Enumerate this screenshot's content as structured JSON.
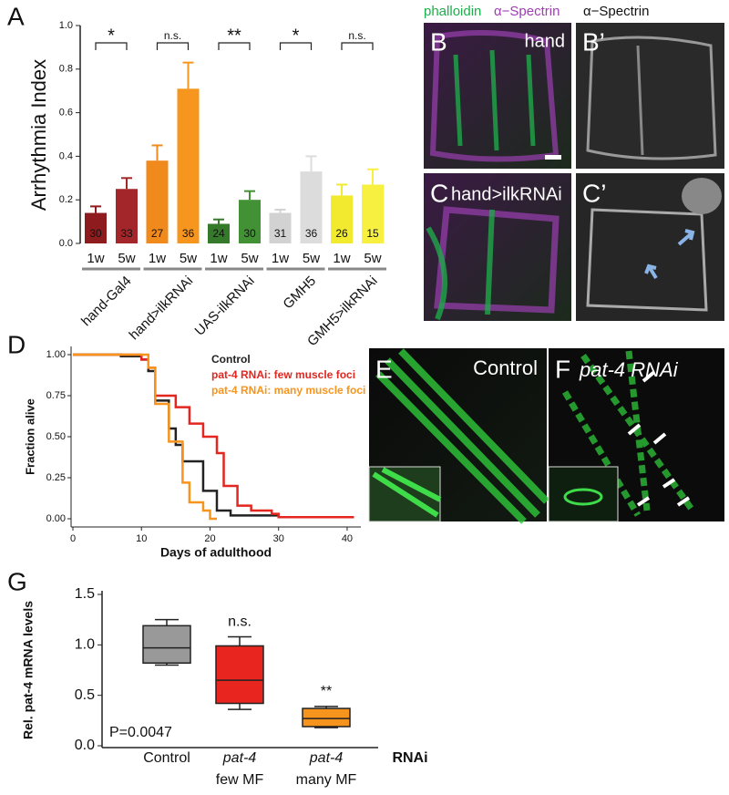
{
  "chart_data": [
    {
      "type": "bar",
      "panel": "A",
      "ylabel": "Arrhythmia Index",
      "ylim": [
        0,
        1
      ],
      "yticks": [
        {
          "value": 0,
          "label": "0.0"
        },
        0.2,
        0.4,
        0.6,
        0.8,
        {
          "value": 1,
          "label": "1.0"
        }
      ],
      "categories": [
        "1w",
        "5w",
        "1w",
        "5w",
        "1w",
        "5w",
        "1w",
        "5w",
        "1w",
        "5w"
      ],
      "groups": [
        "hand-Gal4",
        "hand>ilkRNAi",
        "UAS-ilkRNAi",
        "GMH5",
        "GMH5>ilkRNAi"
      ],
      "significance": [
        "*",
        "n.s.",
        "**",
        "*",
        "n.s."
      ],
      "values": [
        0.14,
        0.25,
        0.38,
        0.71,
        0.09,
        0.2,
        0.14,
        0.33,
        0.22,
        0.27
      ],
      "errors": [
        0.03,
        0.05,
        0.07,
        0.12,
        0.02,
        0.04,
        0.015,
        0.07,
        0.05,
        0.07
      ],
      "counts": [
        30,
        33,
        27,
        36,
        24,
        30,
        31,
        36,
        26,
        15
      ],
      "colors": [
        "#8e1b1e",
        "#a3262a",
        "#f08a1c",
        "#f7961f",
        "#357a2a",
        "#429135",
        "#d2d2d2",
        "#dcdcdc",
        "#f2ea2e",
        "#f7f041"
      ]
    },
    {
      "type": "line",
      "panel": "D",
      "step": true,
      "xlabel": "Days of adulthood",
      "ylabel": "Fraction alive",
      "xlim": [
        0,
        42
      ],
      "xticks": [
        0,
        10,
        20,
        30,
        40
      ],
      "ylim": [
        -0.05,
        1.05
      ],
      "yticks": [
        {
          "value": 0,
          "label": "0.00"
        },
        0.25,
        {
          "value": 0.5,
          "label": "0.50"
        },
        0.75,
        {
          "value": 1,
          "label": "1.00"
        }
      ],
      "series": [
        {
          "name": "Control",
          "color": "#222222",
          "x": [
            0,
            5,
            7,
            10,
            11,
            12,
            14,
            15,
            16,
            18,
            19,
            21,
            23,
            30
          ],
          "values": [
            1,
            1,
            0.99,
            0.97,
            0.9,
            0.72,
            0.55,
            0.45,
            0.35,
            0.35,
            0.17,
            0.05,
            0.02,
            0.02
          ]
        },
        {
          "name": "pat-4 RNAi: few muscle foci",
          "color": "#e3261f",
          "x": [
            0,
            10,
            11,
            12,
            14,
            15,
            17,
            19,
            21,
            22,
            24,
            26,
            29,
            30,
            41
          ],
          "values": [
            1,
            0.97,
            0.92,
            0.75,
            0.75,
            0.68,
            0.58,
            0.5,
            0.4,
            0.2,
            0.08,
            0.05,
            0.03,
            0.01,
            0.01
          ]
        },
        {
          "name": "pat-4 RNAi: many muscle foci",
          "color": "#f7941d",
          "x": [
            0,
            10,
            11,
            12,
            14,
            16,
            17,
            19,
            20,
            21
          ],
          "values": [
            1,
            1,
            0.92,
            0.7,
            0.47,
            0.22,
            0.1,
            0.05,
            0,
            0
          ]
        }
      ]
    },
    {
      "type": "box",
      "panel": "G",
      "ylabel": "Rel. pat-4 mRNA levels",
      "xlabel": "RNAi",
      "ylim": [
        0,
        1.5
      ],
      "yticks": [
        {
          "value": 0,
          "label": "0.0"
        },
        0.5,
        {
          "value": 1,
          "label": "1.0"
        },
        1.5
      ],
      "categories": [
        [
          "Control"
        ],
        [
          "pat-4",
          "few MF"
        ],
        [
          "pat-4",
          "many MF"
        ]
      ],
      "boxes": [
        {
          "min": 0.8,
          "q1": 0.82,
          "median": 0.97,
          "q3": 1.19,
          "max": 1.25
        },
        {
          "min": 0.36,
          "q1": 0.42,
          "median": 0.65,
          "q3": 0.99,
          "max": 1.08
        },
        {
          "min": 0.18,
          "q1": 0.19,
          "median": 0.27,
          "q3": 0.37,
          "max": 0.39
        }
      ],
      "colors": [
        "#999999",
        "#e8251f",
        "#f7941d"
      ],
      "annotations": [
        null,
        "n.s.",
        "**"
      ],
      "stat": "P=0.0047"
    }
  ],
  "image_header": [
    "phalloidin",
    "α−Spectrin",
    "α−Spectrin"
  ],
  "images": [
    {
      "label": "B",
      "caption": "hand"
    },
    {
      "label": "B’"
    },
    {
      "label": "C",
      "caption": "hand>ilkRNAi"
    },
    {
      "label": "C’"
    },
    {
      "label": "E",
      "caption": "Control"
    },
    {
      "label": "F",
      "caption": "pat-4 RNAi"
    }
  ]
}
